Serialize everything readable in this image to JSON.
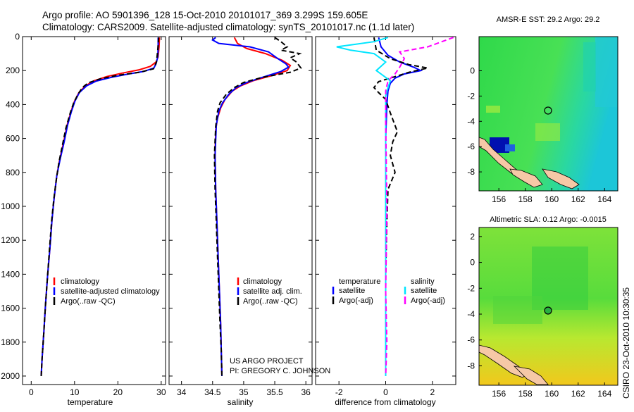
{
  "header": {
    "line1": "Argo profile: AO 5901396_128 15-Oct-2010 20101017_369 3.299S 159.605E",
    "line2": "Climatology: CARS2009. Satellite-adjusted climatology: synTS_20101017.nc (1.1d later)"
  },
  "colors": {
    "clim": "#ff0000",
    "sat": "#0000ff",
    "argo": "#000000",
    "sat_sal": "#00e5ff",
    "argo_sal": "#ff00ff"
  },
  "chart_data": [
    {
      "id": "temperature",
      "type": "line",
      "xlabel": "temperature",
      "ylabel": "",
      "xlim": [
        -2,
        31
      ],
      "ylim": [
        2050,
        0
      ],
      "xticks": [
        0,
        10,
        20,
        30
      ],
      "yticks": [
        0,
        200,
        400,
        600,
        800,
        1000,
        1200,
        1400,
        1600,
        1800,
        2000
      ],
      "legend": [
        "climatology",
        "satellite-adjusted climatology",
        "Argo(..raw -QC)"
      ],
      "series": [
        {
          "name": "climatology",
          "color": "red",
          "style": "solid",
          "points": [
            [
              29.6,
              5
            ],
            [
              29.5,
              60
            ],
            [
              29.3,
              120
            ],
            [
              28.8,
              150
            ],
            [
              27.5,
              175
            ],
            [
              25,
              195
            ],
            [
              21,
              215
            ],
            [
              17.5,
              235
            ],
            [
              14.5,
              260
            ],
            [
              12.5,
              290
            ],
            [
              11,
              330
            ],
            [
              10,
              380
            ],
            [
              9.2,
              440
            ],
            [
              8.3,
              520
            ],
            [
              7.5,
              620
            ],
            [
              6.6,
              720
            ],
            [
              5.9,
              820
            ],
            [
              5.3,
              950
            ],
            [
              4.8,
              1080
            ],
            [
              4.3,
              1250
            ],
            [
              3.8,
              1400
            ],
            [
              3.3,
              1580
            ],
            [
              2.9,
              1750
            ],
            [
              2.5,
              1900
            ],
            [
              2.3,
              2000
            ]
          ]
        },
        {
          "name": "satellite-adjusted climatology",
          "color": "blue",
          "style": "solid",
          "points": [
            [
              29.3,
              5
            ],
            [
              29.3,
              60
            ],
            [
              29.2,
              120
            ],
            [
              28.8,
              160
            ],
            [
              28.3,
              185
            ],
            [
              26,
              205
            ],
            [
              22.5,
              220
            ],
            [
              18.5,
              240
            ],
            [
              15,
              262
            ],
            [
              12.8,
              290
            ],
            [
              11.1,
              330
            ],
            [
              10.1,
              380
            ],
            [
              9.3,
              440
            ],
            [
              8.4,
              520
            ],
            [
              7.6,
              620
            ],
            [
              6.7,
              720
            ],
            [
              5.9,
              820
            ],
            [
              5.3,
              950
            ],
            [
              4.8,
              1080
            ],
            [
              4.3,
              1250
            ],
            [
              3.8,
              1400
            ],
            [
              3.3,
              1580
            ],
            [
              2.9,
              1750
            ],
            [
              2.5,
              1900
            ],
            [
              2.3,
              2000
            ]
          ]
        },
        {
          "name": "Argo(..raw -QC)",
          "color": "black",
          "style": "dashed",
          "points": [
            [
              29.4,
              5
            ],
            [
              29.2,
              80
            ],
            [
              28.9,
              150
            ],
            [
              28.2,
              190
            ],
            [
              25,
              210
            ],
            [
              20,
              228
            ],
            [
              16,
              248
            ],
            [
              13.2,
              272
            ],
            [
              11.8,
              300
            ],
            [
              10.8,
              340
            ],
            [
              9.8,
              390
            ],
            [
              9,
              450
            ],
            [
              8,
              540
            ],
            [
              7.2,
              640
            ],
            [
              6.4,
              740
            ],
            [
              5.8,
              840
            ],
            [
              5.2,
              960
            ],
            [
              4.7,
              1090
            ],
            [
              4.2,
              1260
            ],
            [
              3.8,
              1400
            ],
            [
              3.3,
              1580
            ],
            [
              2.9,
              1750
            ],
            [
              2.5,
              1900
            ],
            [
              2.3,
              2000
            ]
          ]
        }
      ]
    },
    {
      "id": "salinity",
      "type": "line",
      "xlabel": "salinity",
      "ylabel": "",
      "xlim": [
        33.8,
        36.1
      ],
      "ylim": [
        2050,
        0
      ],
      "xticks": [
        34,
        34.5,
        35,
        35.5,
        36
      ],
      "yticks": [
        0,
        200,
        400,
        600,
        800,
        1000,
        1200,
        1400,
        1600,
        1800,
        2000
      ],
      "legend": [
        "climatology",
        "satellite adj. clim.",
        "Argo(..raw -QC)"
      ],
      "annotations": [
        "US ARGO PROJECT",
        "PI: GREGORY C. JOHNSON"
      ],
      "series": [
        {
          "name": "climatology",
          "color": "red",
          "style": "solid",
          "points": [
            [
              34.85,
              5
            ],
            [
              34.9,
              40
            ],
            [
              35.05,
              70
            ],
            [
              35.35,
              100
            ],
            [
              35.62,
              140
            ],
            [
              35.75,
              170
            ],
            [
              35.7,
              200
            ],
            [
              35.45,
              230
            ],
            [
              35.15,
              260
            ],
            [
              34.95,
              290
            ],
            [
              34.82,
              320
            ],
            [
              34.7,
              370
            ],
            [
              34.63,
              420
            ],
            [
              34.58,
              480
            ],
            [
              34.55,
              550
            ],
            [
              34.54,
              700
            ],
            [
              34.55,
              900
            ],
            [
              34.57,
              1100
            ],
            [
              34.59,
              1300
            ],
            [
              34.61,
              1500
            ],
            [
              34.63,
              1700
            ],
            [
              34.64,
              1850
            ],
            [
              34.65,
              2000
            ]
          ]
        },
        {
          "name": "satellite adj. clim.",
          "color": "blue",
          "style": "solid",
          "points": [
            [
              34.55,
              5
            ],
            [
              34.5,
              20
            ],
            [
              34.6,
              40
            ],
            [
              35.1,
              60
            ],
            [
              35.4,
              90
            ],
            [
              35.55,
              130
            ],
            [
              35.68,
              160
            ],
            [
              35.72,
              180
            ],
            [
              35.6,
              205
            ],
            [
              35.3,
              240
            ],
            [
              35.05,
              270
            ],
            [
              34.88,
              300
            ],
            [
              34.76,
              340
            ],
            [
              34.66,
              390
            ],
            [
              34.6,
              440
            ],
            [
              34.56,
              520
            ],
            [
              34.54,
              700
            ],
            [
              34.55,
              900
            ],
            [
              34.57,
              1100
            ],
            [
              34.59,
              1300
            ],
            [
              34.61,
              1500
            ],
            [
              34.63,
              1700
            ],
            [
              34.64,
              1850
            ],
            [
              34.65,
              2000
            ]
          ]
        },
        {
          "name": "Argo(..raw -QC)",
          "color": "black",
          "style": "dashed",
          "points": [
            [
              35.5,
              5
            ],
            [
              35.6,
              30
            ],
            [
              35.7,
              60
            ],
            [
              35.6,
              80
            ],
            [
              35.9,
              100
            ],
            [
              35.75,
              125
            ],
            [
              35.85,
              150
            ],
            [
              35.92,
              185
            ],
            [
              35.75,
              210
            ],
            [
              35.3,
              240
            ],
            [
              35.0,
              270
            ],
            [
              34.85,
              300
            ],
            [
              34.72,
              340
            ],
            [
              34.62,
              390
            ],
            [
              34.58,
              440
            ],
            [
              34.55,
              530
            ],
            [
              34.53,
              700
            ],
            [
              34.54,
              900
            ],
            [
              34.56,
              1100
            ],
            [
              34.58,
              1300
            ],
            [
              34.6,
              1500
            ],
            [
              34.62,
              1700
            ],
            [
              34.64,
              1850
            ],
            [
              34.65,
              2000
            ]
          ]
        }
      ]
    },
    {
      "id": "difference",
      "type": "line",
      "xlabel": "difference from climatology",
      "ylabel": "",
      "xlim": [
        -3,
        3
      ],
      "ylim": [
        2050,
        0
      ],
      "xticks": [
        -2,
        0,
        2
      ],
      "yticks": [
        0,
        200,
        400,
        600,
        800,
        1000,
        1200,
        1400,
        1600,
        1800,
        2000
      ],
      "legend": [
        "temperature",
        "satellite",
        "Argo(-adj)",
        "salinity",
        "satellite",
        "Argo(-adj)"
      ],
      "series": [
        {
          "name": "temperature satellite",
          "color": "blue",
          "style": "solid",
          "points": [
            [
              -0.3,
              5
            ],
            [
              -0.2,
              60
            ],
            [
              0.1,
              110
            ],
            [
              0.6,
              150
            ],
            [
              1.2,
              180
            ],
            [
              1.5,
              200
            ],
            [
              0.8,
              220
            ],
            [
              0.4,
              245
            ],
            [
              0.2,
              275
            ],
            [
              0.1,
              320
            ],
            [
              0.05,
              400
            ],
            [
              0.0,
              600
            ],
            [
              0.0,
              1000
            ],
            [
              0.0,
              1500
            ],
            [
              0.0,
              2000
            ]
          ]
        },
        {
          "name": "temperature Argo(-adj)",
          "color": "black",
          "style": "dashed",
          "points": [
            [
              -0.5,
              5
            ],
            [
              -0.4,
              80
            ],
            [
              0.2,
              130
            ],
            [
              1.0,
              165
            ],
            [
              1.8,
              185
            ],
            [
              1.0,
              210
            ],
            [
              0.3,
              240
            ],
            [
              -0.3,
              265
            ],
            [
              -0.5,
              300
            ],
            [
              -0.3,
              330
            ],
            [
              0.0,
              370
            ],
            [
              0.2,
              450
            ],
            [
              0.5,
              560
            ],
            [
              0.3,
              620
            ],
            [
              0.2,
              700
            ],
            [
              0.4,
              800
            ],
            [
              0.1,
              900
            ],
            [
              0.05,
              1100
            ],
            [
              0.0,
              1400
            ],
            [
              0.0,
              2000
            ]
          ]
        },
        {
          "name": "salinity satellite",
          "color": "#00e5ff",
          "style": "solid",
          "points": [
            [
              0.1,
              5
            ],
            [
              -0.5,
              30
            ],
            [
              -2.1,
              60
            ],
            [
              -1.5,
              80
            ],
            [
              -0.5,
              100
            ],
            [
              0.0,
              150
            ],
            [
              -0.4,
              200
            ],
            [
              0.2,
              260
            ],
            [
              0.1,
              300
            ],
            [
              0.0,
              350
            ],
            [
              0.0,
              500
            ],
            [
              0.0,
              1000
            ],
            [
              0.0,
              1500
            ],
            [
              0.0,
              2000
            ]
          ]
        },
        {
          "name": "salinity Argo(-adj)",
          "color": "#ff00ff",
          "style": "dashed",
          "points": [
            [
              2.9,
              5
            ],
            [
              1.8,
              60
            ],
            [
              0.6,
              90
            ],
            [
              0.8,
              130
            ],
            [
              0.6,
              180
            ],
            [
              0.4,
              220
            ],
            [
              0.1,
              260
            ],
            [
              0.0,
              320
            ],
            [
              0.0,
              500
            ],
            [
              0.05,
              1000
            ],
            [
              0.0,
              1500
            ],
            [
              0.05,
              1800
            ],
            [
              0.0,
              2000
            ]
          ]
        }
      ]
    },
    {
      "id": "sst-map",
      "type": "heatmap",
      "title": "AMSR-E SST: 29.2 Argo: 29.2",
      "xlim": [
        154.5,
        165
      ],
      "ylim": [
        -9.5,
        2.7
      ],
      "xticks": [
        156,
        158,
        160,
        162,
        164
      ],
      "yticks": [
        0,
        -2,
        -4,
        -6,
        -8
      ],
      "marker": {
        "lon": 159.6,
        "lat": -3.3
      }
    },
    {
      "id": "sla-map",
      "type": "heatmap",
      "title": "Altimetric SLA: 0.12 Argo: -0.0015",
      "xlim": [
        154.5,
        165
      ],
      "ylim": [
        -9.5,
        2.7
      ],
      "xticks": [
        156,
        158,
        160,
        162,
        164
      ],
      "yticks": [
        2,
        0,
        -2,
        -4,
        -6,
        -8
      ],
      "marker": {
        "lon": 159.6,
        "lat": -3.3
      }
    }
  ],
  "side_label": "CSIRO 23-Oct-2010 10:30:35"
}
